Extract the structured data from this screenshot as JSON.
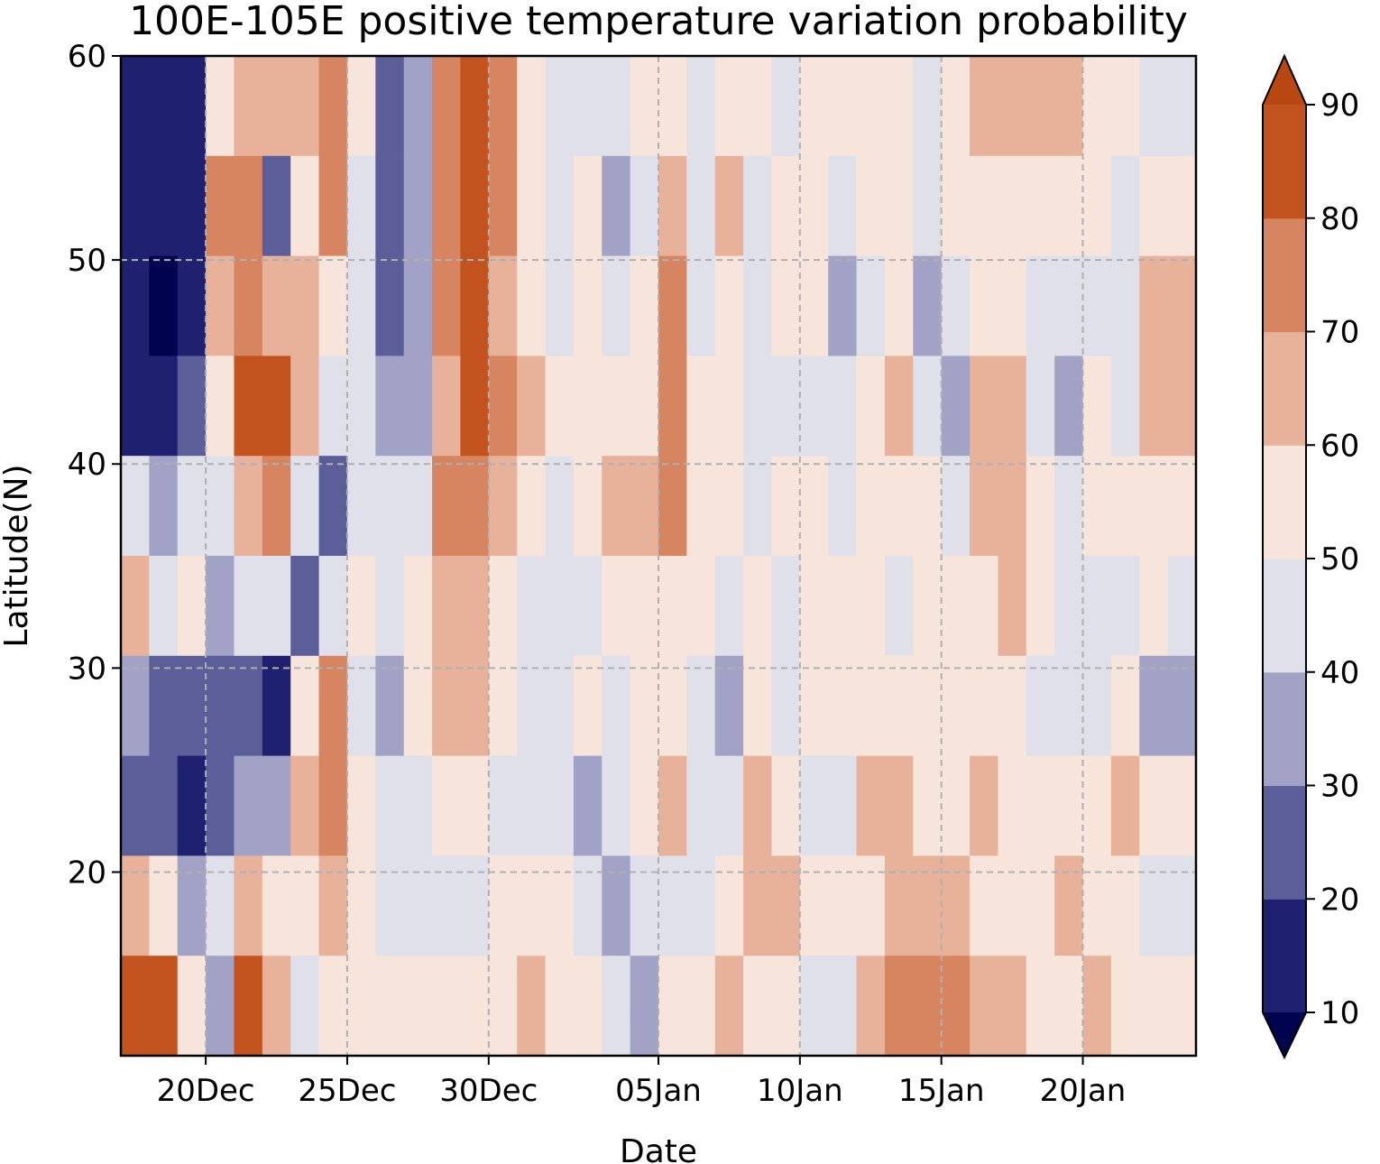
{
  "chart_data": {
    "type": "heatmap",
    "title": "100E-105E positive temperature variation probability",
    "xlabel": "Date",
    "ylabel": "Latitude(N)",
    "x_ticks": [
      "20Dec",
      "25Dec",
      "30Dec",
      "05Jan",
      "10Jan",
      "15Jan",
      "20Jan"
    ],
    "y_ticks": [
      "20",
      "30",
      "40",
      "50",
      "60"
    ],
    "xlim": [
      "17Dec",
      "24Jan"
    ],
    "ylim": [
      11,
      60
    ],
    "grid": true,
    "levels": [
      10,
      20,
      30,
      40,
      50,
      60,
      70,
      80,
      90
    ],
    "colorbar": {
      "orientation": "vertical",
      "extend": "both",
      "tick_labels": [
        "10",
        "20",
        "30",
        "40",
        "50",
        "60",
        "70",
        "80",
        "90"
      ],
      "colors": [
        "#02034f",
        "#1f2070",
        "#5c5e9a",
        "#a1a2c6",
        "#e0e0ea",
        "#f7e5dc",
        "#e8b19a",
        "#d78561",
        "#c3531e",
        "#b84711"
      ]
    },
    "columns_note": "probability (%) by date column (rows: latitude bands 60-11N)",
    "columns": [
      {
        "date": "17Dec",
        "values": [
          15,
          12,
          10,
          15,
          40,
          62,
          35,
          20,
          68,
          88
        ]
      },
      {
        "date": "18Dec",
        "values": [
          12,
          10,
          8,
          12,
          30,
          48,
          20,
          25,
          55,
          80
        ]
      },
      {
        "date": "19Dec",
        "values": [
          18,
          15,
          15,
          20,
          45,
          55,
          28,
          12,
          30,
          55
        ]
      },
      {
        "date": "20Dec",
        "values": [
          55,
          75,
          60,
          55,
          40,
          30,
          22,
          20,
          45,
          35
        ]
      },
      {
        "date": "21Dec",
        "values": [
          65,
          70,
          72,
          80,
          65,
          45,
          25,
          30,
          60,
          85
        ]
      },
      {
        "date": "22Dec",
        "values": [
          60,
          25,
          68,
          82,
          70,
          40,
          18,
          35,
          55,
          65
        ]
      },
      {
        "date": "23Dec",
        "values": [
          62,
          55,
          60,
          65,
          40,
          25,
          50,
          60,
          50,
          45
        ]
      },
      {
        "date": "24Dec",
        "values": [
          70,
          75,
          55,
          40,
          20,
          40,
          70,
          70,
          60,
          55
        ]
      },
      {
        "date": "25Dec",
        "values": [
          50,
          45,
          40,
          48,
          45,
          50,
          48,
          52,
          58,
          55
        ]
      },
      {
        "date": "26Dec",
        "values": [
          25,
          22,
          28,
          35,
          40,
          45,
          35,
          40,
          48,
          50
        ]
      },
      {
        "date": "27Dec",
        "values": [
          35,
          30,
          32,
          38,
          48,
          55,
          50,
          45,
          48,
          52
        ]
      },
      {
        "date": "28Dec",
        "values": [
          75,
          78,
          72,
          68,
          72,
          65,
          60,
          52,
          48,
          55
        ]
      },
      {
        "date": "29Dec",
        "values": [
          82,
          80,
          80,
          82,
          70,
          60,
          68,
          55,
          48,
          55
        ]
      },
      {
        "date": "30Dec",
        "values": [
          70,
          72,
          68,
          70,
          65,
          55,
          50,
          45,
          55,
          58
        ]
      },
      {
        "date": "31Dec",
        "values": [
          55,
          55,
          58,
          60,
          50,
          45,
          48,
          42,
          58,
          62
        ]
      },
      {
        "date": "01Jan",
        "values": [
          42,
          45,
          48,
          52,
          48,
          45,
          45,
          40,
          52,
          55
        ]
      },
      {
        "date": "02Jan",
        "values": [
          48,
          50,
          52,
          55,
          52,
          48,
          50,
          35,
          45,
          50
        ]
      },
      {
        "date": "03Jan",
        "values": [
          45,
          38,
          40,
          50,
          62,
          55,
          48,
          40,
          35,
          45
        ]
      },
      {
        "date": "04Jan",
        "values": [
          52,
          48,
          55,
          58,
          65,
          55,
          50,
          58,
          42,
          38
        ]
      },
      {
        "date": "05Jan",
        "values": [
          58,
          62,
          75,
          70,
          75,
          58,
          52,
          60,
          48,
          55
        ]
      },
      {
        "date": "06Jan",
        "values": [
          48,
          45,
          48,
          50,
          55,
          50,
          48,
          40,
          45,
          52
        ]
      },
      {
        "date": "07Jan",
        "values": [
          52,
          60,
          52,
          55,
          52,
          48,
          35,
          45,
          55,
          60
        ]
      },
      {
        "date": "08Jan",
        "values": [
          55,
          42,
          48,
          40,
          48,
          50,
          52,
          62,
          60,
          58
        ]
      },
      {
        "date": "09Jan",
        "values": [
          48,
          50,
          52,
          45,
          52,
          48,
          45,
          55,
          62,
          52
        ]
      },
      {
        "date": "10Jan",
        "values": [
          58,
          55,
          50,
          48,
          55,
          52,
          50,
          48,
          52,
          45
        ]
      },
      {
        "date": "11Jan",
        "values": [
          50,
          45,
          35,
          42,
          48,
          55,
          52,
          48,
          50,
          48
        ]
      },
      {
        "date": "12Jan",
        "values": [
          55,
          50,
          48,
          55,
          58,
          50,
          55,
          62,
          58,
          60
        ]
      },
      {
        "date": "13Jan",
        "values": [
          50,
          52,
          55,
          60,
          58,
          48,
          52,
          62,
          65,
          75
        ]
      },
      {
        "date": "14Jan",
        "values": [
          48,
          45,
          30,
          45,
          50,
          52,
          55,
          55,
          62,
          78
        ]
      },
      {
        "date": "15Jan",
        "values": [
          52,
          50,
          42,
          35,
          48,
          50,
          50,
          52,
          60,
          70
        ]
      },
      {
        "date": "16Jan",
        "values": [
          62,
          55,
          52,
          60,
          65,
          55,
          50,
          62,
          55,
          62
        ]
      },
      {
        "date": "17Jan",
        "values": [
          62,
          58,
          55,
          65,
          62,
          60,
          55,
          58,
          52,
          60
        ]
      },
      {
        "date": "18Jan",
        "values": [
          60,
          52,
          45,
          48,
          58,
          50,
          48,
          52,
          55,
          58
        ]
      },
      {
        "date": "19Jan",
        "values": [
          65,
          55,
          48,
          32,
          45,
          48,
          42,
          55,
          62,
          55
        ]
      },
      {
        "date": "20Jan",
        "values": [
          58,
          55,
          48,
          55,
          50,
          45,
          45,
          52,
          55,
          60
        ]
      },
      {
        "date": "21Jan",
        "values": [
          52,
          48,
          42,
          48,
          52,
          48,
          55,
          62,
          52,
          50
        ]
      },
      {
        "date": "22Jan",
        "values": [
          48,
          55,
          62,
          65,
          58,
          52,
          35,
          55,
          48,
          52
        ]
      },
      {
        "date": "23Jan",
        "values": [
          42,
          50,
          60,
          68,
          55,
          48,
          35,
          50,
          45,
          50
        ]
      }
    ]
  }
}
